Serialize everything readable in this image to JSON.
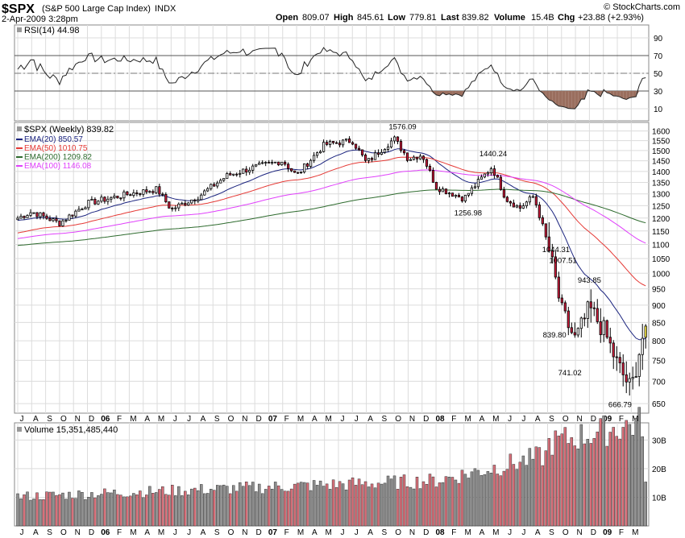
{
  "header": {
    "symbol": "$SPX",
    "name": "(S&P 500 Large Cap Index)",
    "exchange": "INDX",
    "date": "2-Apr-2009 3:28pm",
    "credit": "© StockCharts.com",
    "open_label": "Open",
    "open": "809.07",
    "high_label": "High",
    "high": "845.61",
    "low_label": "Low",
    "low": "779.81",
    "last_label": "Last",
    "last": "839.82",
    "volume_label": "Volume",
    "volume": "15.4B",
    "chg_label": "Chg",
    "chg": "+23.88 (+2.93%)"
  },
  "colors": {
    "up": "#ffffff",
    "down": "#d01c3c",
    "candle_outline": "#000000",
    "latest": "#ffee44",
    "ema20": "#1a237e",
    "ema50": "#e53935",
    "ema200": "#2e6b2e",
    "ema100": "#e040fb",
    "vol_up": "#909090",
    "vol_down": "#d9707a",
    "grid": "#dcdcdc",
    "rsi_fill": "#9a6e5e"
  },
  "x_axis": {
    "labels": [
      "J",
      "A",
      "S",
      "O",
      "N",
      "D",
      "06",
      "F",
      "M",
      "A",
      "M",
      "J",
      "J",
      "A",
      "S",
      "O",
      "N",
      "D",
      "07",
      "F",
      "M",
      "A",
      "M",
      "J",
      "J",
      "A",
      "S",
      "O",
      "N",
      "D",
      "08",
      "F",
      "M",
      "A",
      "M",
      "J",
      "J",
      "A",
      "S",
      "O",
      "N",
      "D",
      "09",
      "F",
      "M"
    ],
    "year_labels": [
      "06",
      "07",
      "08",
      "09"
    ]
  },
  "rsi_panel": {
    "label": "RSI(14) 44.98",
    "ticks": [
      "90",
      "70",
      "50",
      "30",
      "10"
    ]
  },
  "price_panel": {
    "label": "$SPX (Weekly) 839.82",
    "ticks": [
      "1600",
      "1550",
      "1500",
      "1450",
      "1400",
      "1350",
      "1300",
      "1250",
      "1200",
      "1150",
      "1100",
      "1050",
      "1000",
      "950",
      "900",
      "850",
      "800",
      "750",
      "700",
      "650"
    ],
    "legend": [
      {
        "text": "EMA(20) 850.57",
        "color": "#1a237e"
      },
      {
        "text": "EMA(50) 1010.75",
        "color": "#e53935"
      },
      {
        "text": "EMA(200) 1209.82",
        "color": "#2e6b2e"
      },
      {
        "text": "EMA(100) 1146.08",
        "color": "#e040fb"
      }
    ],
    "annotations": [
      "1576.09",
      "1440.24",
      "1256.98",
      "1044.31",
      "1007.51",
      "943.85",
      "839.80",
      "741.02",
      "666.79"
    ]
  },
  "volume_panel": {
    "label": "Volume 15,351,485,440",
    "ticks": [
      "30B",
      "20B",
      "10B"
    ]
  },
  "chart_data": {
    "type": "candlestick",
    "title": "$SPX (S&P 500 Large Cap Index) INDX",
    "period": "Weekly",
    "x_range": [
      "2005-07",
      "2009-04"
    ],
    "ylim": [
      640,
      1620
    ],
    "y_scale": "log",
    "price_waypoints": [
      {
        "date": "2005-07",
        "close": 1200
      },
      {
        "date": "2005-08",
        "close": 1225
      },
      {
        "date": "2005-10",
        "close": 1180
      },
      {
        "date": "2005-12",
        "close": 1260
      },
      {
        "date": "2006-03",
        "close": 1300
      },
      {
        "date": "2006-05",
        "close": 1320
      },
      {
        "date": "2006-06",
        "close": 1235
      },
      {
        "date": "2006-08",
        "close": 1290
      },
      {
        "date": "2006-10",
        "close": 1380
      },
      {
        "date": "2006-12",
        "close": 1420
      },
      {
        "date": "2007-02",
        "close": 1450
      },
      {
        "date": "2007-03",
        "close": 1380
      },
      {
        "date": "2007-05",
        "close": 1530
      },
      {
        "date": "2007-07",
        "close": 1550
      },
      {
        "date": "2007-08",
        "close": 1440
      },
      {
        "date": "2007-10",
        "close": 1560
      },
      {
        "date": "2007-11",
        "close": 1460
      },
      {
        "date": "2007-12",
        "close": 1480
      },
      {
        "date": "2008-01",
        "close": 1330
      },
      {
        "date": "2008-03",
        "close": 1280
      },
      {
        "date": "2008-05",
        "close": 1420
      },
      {
        "date": "2008-06",
        "close": 1280
      },
      {
        "date": "2008-07",
        "close": 1240
      },
      {
        "date": "2008-08",
        "close": 1290
      },
      {
        "date": "2008-09",
        "close": 1100
      },
      {
        "date": "2008-10",
        "close": 880
      },
      {
        "date": "2008-11",
        "close": 800
      },
      {
        "date": "2008-12",
        "close": 890
      },
      {
        "date": "2009-01",
        "close": 830
      },
      {
        "date": "2009-02",
        "close": 740
      },
      {
        "date": "2009-03",
        "close": 680
      },
      {
        "date": "2009-04",
        "close": 840
      }
    ],
    "ema_series": [
      {
        "name": "EMA(20)",
        "last": 850.57
      },
      {
        "name": "EMA(50)",
        "last": 1010.75
      },
      {
        "name": "EMA(200)",
        "last": 1209.82
      },
      {
        "name": "EMA(100)",
        "last": 1146.08
      }
    ],
    "rsi": {
      "period": 14,
      "last": 44.98,
      "ylim": [
        0,
        100
      ]
    },
    "volume": {
      "last": 15351485440,
      "ylim_billions": [
        0,
        36
      ]
    }
  }
}
